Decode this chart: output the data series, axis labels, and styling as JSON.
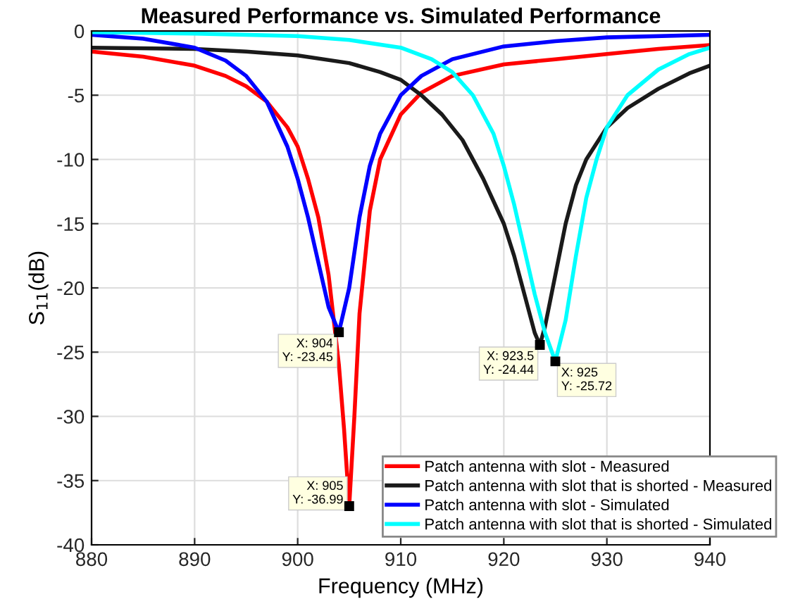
{
  "chart_data": {
    "type": "line",
    "title": "Measured Performance vs. Simulated Performance",
    "xlabel": "Frequency (MHz)",
    "ylabel": "S$_{11}$(dB)",
    "xlim": [
      880,
      940
    ],
    "xticks": [
      880,
      890,
      900,
      910,
      920,
      930,
      940
    ],
    "ylim": [
      -40,
      0
    ],
    "yticks": [
      -40,
      -35,
      -30,
      -25,
      -20,
      -15,
      -10,
      -5,
      0
    ],
    "grid": true,
    "legend": "bottom right",
    "marker": "none",
    "line_style": "solid",
    "series": [
      {
        "name": "Patch antenna with slot - Measured",
        "color": "#ff0000",
        "x": [
          880,
          885,
          890,
          893,
          895,
          897,
          899,
          900,
          901,
          902,
          903,
          904,
          904.5,
          905,
          905.5,
          906,
          907,
          908,
          910,
          912,
          915,
          920,
          925,
          930,
          935,
          940
        ],
        "values": [
          -1.6,
          -2.0,
          -2.7,
          -3.5,
          -4.3,
          -5.5,
          -7.5,
          -9,
          -11.5,
          -14.5,
          -19,
          -26,
          -31,
          -36.99,
          -30,
          -22,
          -14,
          -10,
          -6.5,
          -4.8,
          -3.5,
          -2.6,
          -2.2,
          -1.8,
          -1.4,
          -1.1
        ]
      },
      {
        "name": "Patch antenna with slot that is shorted - Measured",
        "color": "#1a1a1a",
        "x": [
          880,
          890,
          895,
          900,
          905,
          908,
          910,
          912,
          914,
          916,
          918,
          920,
          921,
          922,
          923,
          923.5,
          924,
          925,
          926,
          927,
          928,
          930,
          932,
          935,
          938,
          940
        ],
        "values": [
          -1.3,
          -1.4,
          -1.6,
          -1.9,
          -2.5,
          -3.2,
          -3.8,
          -5,
          -6.5,
          -8.5,
          -11.5,
          -15,
          -17.5,
          -20.5,
          -23.5,
          -24.44,
          -23,
          -19,
          -15,
          -12,
          -10,
          -7.5,
          -6,
          -4.5,
          -3.3,
          -2.7
        ]
      },
      {
        "name": "Patch antenna with slot - Simulated",
        "color": "#0000ff",
        "x": [
          880,
          885,
          890,
          893,
          895,
          897,
          899,
          900,
          901,
          902,
          903,
          904,
          905,
          906,
          907,
          908,
          910,
          912,
          915,
          920,
          925,
          930,
          940
        ],
        "values": [
          -0.3,
          -0.6,
          -1.3,
          -2.3,
          -3.5,
          -5.5,
          -9,
          -11.5,
          -14.5,
          -18,
          -21.5,
          -23.45,
          -20,
          -14.5,
          -10.5,
          -8,
          -5,
          -3.5,
          -2.2,
          -1.2,
          -0.8,
          -0.5,
          -0.3
        ]
      },
      {
        "name": "Patch antenna with slot that is shorted - Simulated",
        "color": "#00ffff",
        "x": [
          880,
          890,
          900,
          905,
          910,
          913,
          915,
          917,
          919,
          920,
          921,
          922,
          923,
          924,
          925,
          926,
          927,
          928,
          929,
          930,
          932,
          935,
          938,
          940
        ],
        "values": [
          -0.1,
          -0.2,
          -0.4,
          -0.7,
          -1.3,
          -2.2,
          -3.2,
          -5,
          -8,
          -10.5,
          -13.5,
          -17,
          -20.5,
          -23.5,
          -25.72,
          -22.5,
          -17.5,
          -13,
          -10,
          -7.5,
          -5,
          -3,
          -1.8,
          -1.3
        ]
      }
    ],
    "annotations": [
      {
        "text": "X: 904\nY: -23.45",
        "x": 904,
        "y": -23.45
      },
      {
        "text": "X: 905\nY: -36.99",
        "x": 905,
        "y": -36.99
      },
      {
        "text": "X: 923.5\nY: -24.44",
        "x": 923.5,
        "y": -24.44
      },
      {
        "text": "X: 925\nY: -25.72",
        "x": 925,
        "y": -25.72
      }
    ]
  }
}
